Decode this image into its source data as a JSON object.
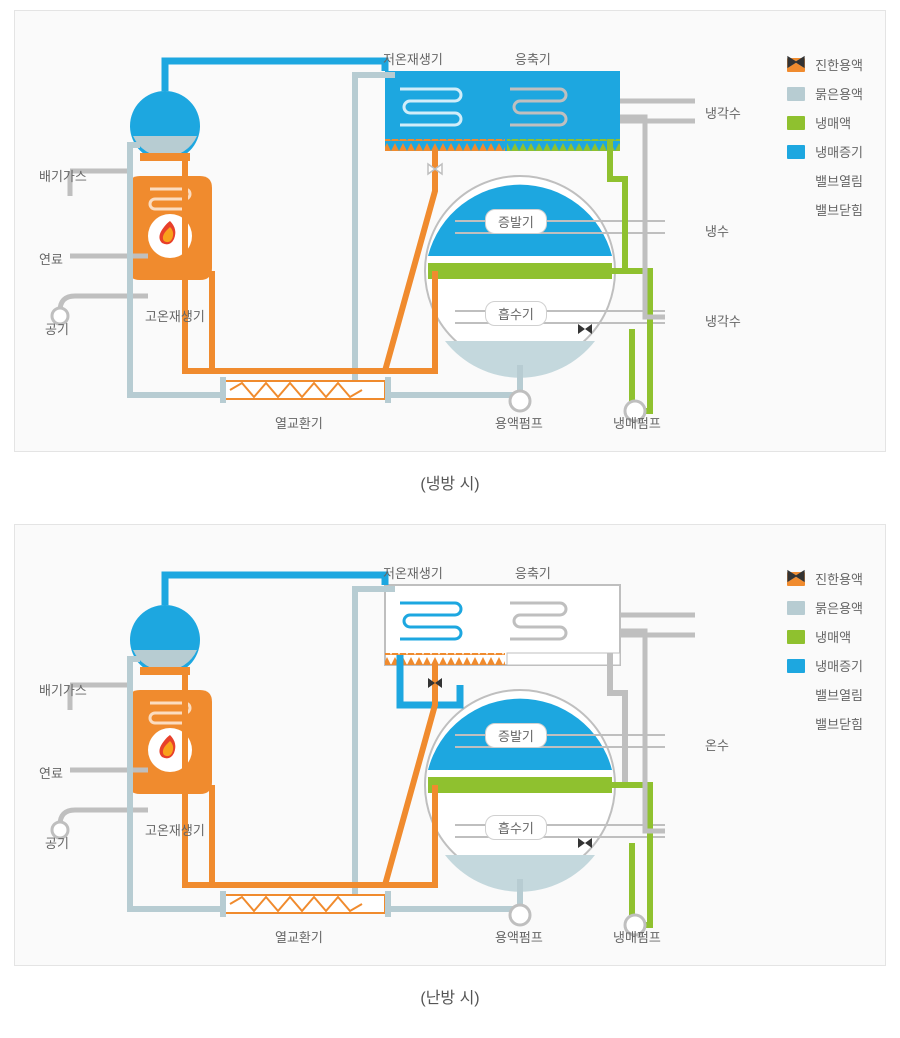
{
  "colors": {
    "concentrated": "#f08b2e",
    "dilute": "#b7ccd2",
    "refrigerant_liquid": "#8fc12f",
    "refrigerant_vapor": "#1da7e0",
    "valve_open_stroke": "#c8c8c8",
    "valve_closed_fill": "#333333",
    "pipe_gray": "#bfbfbf",
    "panel_border": "#e4e4e4",
    "panel_bg": "#fafafa",
    "text": "#666666",
    "absorber_fill": "#c4d8dd",
    "flame_red": "#e8402a",
    "flame_orange": "#f9a11b"
  },
  "legend": [
    {
      "type": "swatch",
      "key": "concentrated",
      "label": "진한용액"
    },
    {
      "type": "swatch",
      "key": "dilute",
      "label": "묽은용액"
    },
    {
      "type": "swatch",
      "key": "refrigerant_liquid",
      "label": "냉매액"
    },
    {
      "type": "swatch",
      "key": "refrigerant_vapor",
      "label": "냉매증기"
    },
    {
      "type": "valve_open",
      "label": "밸브열림"
    },
    {
      "type": "valve_closed",
      "label": "밸브닫힘"
    }
  ],
  "common_labels": {
    "exhaust": "배기가스",
    "fuel": "연료",
    "air": "공기",
    "high_regen": "고온재생기",
    "low_regen": "저온재생기",
    "condenser": "응축기",
    "evaporator": "증발기",
    "absorber": "흡수기",
    "hx": "열교환기",
    "sol_pump": "용액펌프",
    "ref_pump": "냉매펌프",
    "cooling_water": "냉각수"
  },
  "panels": {
    "cooling": {
      "caption": "(냉방 시)",
      "condenser_active": true,
      "right1": "냉각수",
      "right2": "냉수",
      "right3": "냉각수"
    },
    "heating": {
      "caption": "(난방 시)",
      "condenser_active": false,
      "right1": "",
      "right2": "온수",
      "right3": ""
    }
  }
}
